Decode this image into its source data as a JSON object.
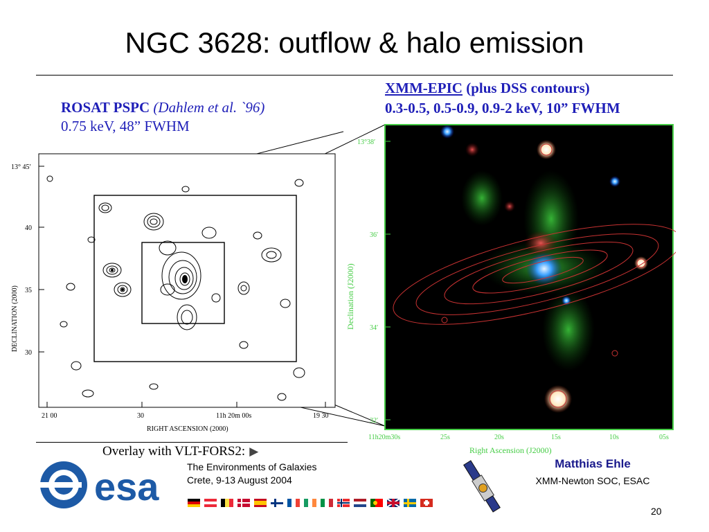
{
  "slide": {
    "title": "NGC 3628: outflow & halo emission",
    "page_number": "20"
  },
  "rosat": {
    "instrument": "ROSAT PSPC",
    "citation": "(Dahlem et al. `96)",
    "params": "0.75 keV, 48” FWHM",
    "figure": {
      "dec_ticks": [
        "13° 45′",
        "40",
        "35",
        "30"
      ],
      "ra_ticks": [
        "21 00",
        "30",
        "11h 20m 00s",
        "19 30"
      ],
      "xlabel": "RIGHT ASCENSION (2000)",
      "ylabel": "DECLINATION (2000)"
    }
  },
  "xmm": {
    "instrument": "XMM-EPIC",
    "contours": "(plus DSS contours)",
    "params": "0.3-0.5, 0.5-0.9, 0.9-2 keV, 10” FWHM",
    "figure": {
      "dec_ticks": [
        "13°38′",
        "36′",
        "34′",
        "32′"
      ],
      "ra_ticks": [
        "11h20m30s",
        "25s",
        "20s",
        "15s",
        "10s",
        "05s"
      ],
      "xlabel": "Right Ascension (J2000)",
      "ylabel": "Declination (J2000)"
    }
  },
  "footer": {
    "overlay": "Overlay with VLT-FORS2:",
    "conference_line1": "The Environments of Galaxies",
    "conference_line2": "Crete, 9-13 August 2004",
    "logo_text": "esa",
    "author_name": "Matthias Ehle",
    "author_affiliation": "XMM-Newton SOC, ESAC"
  },
  "colors": {
    "accent_blue": "#1f1fb8",
    "author_blue": "#1a1a8c",
    "esa_blue": "#1d5aa6",
    "xmm_frame_green": "#44cc44",
    "contour_red": "#c83232"
  }
}
